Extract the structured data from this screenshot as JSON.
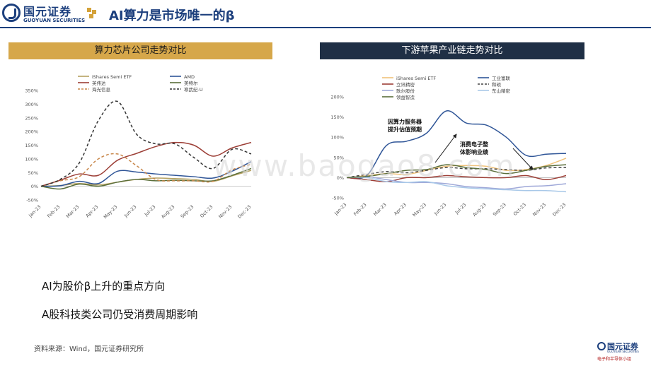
{
  "header": {
    "logo_cn": "国元证券",
    "logo_en": "GUOYUAN SECURITIES",
    "title": "AI算力是市场唯一的β",
    "brand_color": "#1c3f7d",
    "accent_color": "#d4a23a"
  },
  "left_panel": {
    "title": "算力芯片公司走势对比"
  },
  "right_panel": {
    "title": "下游苹果产业链走势对比"
  },
  "watermark": "www.baogao8.com",
  "bullets": [
    "AI为股价β上升的重点方向",
    "A股科技类公司仍受消费周期影响"
  ],
  "source": "资料来源：Wind，国元证券研究所",
  "footer_logo": {
    "cn": "国元证券",
    "en": "GUOYUAN SECURITIES",
    "team": "电子和半导体小组"
  },
  "chart_data": [
    {
      "type": "line",
      "title": "算力芯片公司走势对比",
      "x": [
        "Jan-23",
        "Feb-23",
        "Mar-23",
        "Apr-23",
        "May-23",
        "Jun-23",
        "Jul-23",
        "Aug-23",
        "Sep-23",
        "Oct-23",
        "Nov-23",
        "Dec-23"
      ],
      "yticks": [
        "350%",
        "300%",
        "250%",
        "200%",
        "150%",
        "100%",
        "50%",
        "0%",
        "-50%"
      ],
      "ylim": [
        -50,
        350
      ],
      "unit": "%",
      "legend_position": "top",
      "grid": false,
      "series": [
        {
          "name": "iShares Semi ETF",
          "color": "#b5a160",
          "dash": false,
          "values": [
            0,
            3,
            10,
            5,
            15,
            25,
            30,
            28,
            25,
            18,
            38,
            58
          ]
        },
        {
          "name": "AMD",
          "color": "#2f5597",
          "dash": false,
          "values": [
            0,
            2,
            18,
            10,
            55,
            52,
            45,
            40,
            35,
            30,
            55,
            90
          ]
        },
        {
          "name": "英伟达",
          "color": "#9c3e36",
          "dash": false,
          "values": [
            0,
            22,
            45,
            40,
            95,
            120,
            145,
            160,
            150,
            110,
            140,
            160
          ]
        },
        {
          "name": "美特尔",
          "color": "#5a6e3a",
          "dash": false,
          "values": [
            0,
            -10,
            8,
            0,
            15,
            25,
            20,
            22,
            20,
            20,
            40,
            65
          ]
        },
        {
          "name": "海光信息",
          "color": "#c8874a",
          "dash": true,
          "values": [
            0,
            20,
            35,
            100,
            118,
            75,
            25,
            20,
            20,
            18,
            60,
            80
          ]
        },
        {
          "name": "寒武纪-U",
          "color": "#333333",
          "dash": true,
          "values": [
            0,
            25,
            85,
            240,
            310,
            190,
            155,
            155,
            105,
            65,
            135,
            118
          ]
        }
      ]
    },
    {
      "type": "line",
      "title": "下游苹果产业链走势对比",
      "x": [
        "Jan-23",
        "Feb-23",
        "Mar-23",
        "Apr-23",
        "May-23",
        "Jun-23",
        "Jul-23",
        "Aug-23",
        "Sep-23",
        "Oct-23",
        "Nov-23",
        "Dec-23"
      ],
      "yticks": [
        "200%",
        "150%",
        "100%",
        "50%",
        "0%",
        "-50%"
      ],
      "ylim": [
        -50,
        200
      ],
      "unit": "%",
      "legend_position": "top",
      "grid": false,
      "annotations": [
        "因算力服务器\n提升估值预期",
        "消费电子整\n体影响业绩"
      ],
      "series": [
        {
          "name": "iShares Semi ETF",
          "color": "#f0c27a",
          "dash": false,
          "values": [
            0,
            5,
            10,
            8,
            18,
            28,
            30,
            28,
            18,
            20,
            30,
            48
          ]
        },
        {
          "name": "工业富联",
          "color": "#2f5597",
          "dash": false,
          "values": [
            0,
            5,
            80,
            90,
            110,
            165,
            135,
            130,
            100,
            55,
            58,
            60
          ]
        },
        {
          "name": "立讯精密",
          "color": "#9c3e36",
          "dash": false,
          "values": [
            0,
            -5,
            -10,
            0,
            0,
            5,
            2,
            0,
            0,
            5,
            -5,
            5
          ]
        },
        {
          "name": "和硕",
          "color": "#444444",
          "dash": true,
          "values": [
            0,
            8,
            15,
            12,
            18,
            25,
            22,
            22,
            20,
            18,
            24,
            25
          ]
        },
        {
          "name": "歌尔股份",
          "color": "#9fa8d8",
          "dash": false,
          "values": [
            0,
            2,
            -5,
            -12,
            -12,
            -15,
            -22,
            -25,
            -28,
            -22,
            -20,
            -15
          ]
        },
        {
          "name": "东山精密",
          "color": "#a8c8e8",
          "dash": false,
          "values": [
            0,
            0,
            -10,
            -12,
            -10,
            -20,
            -25,
            -28,
            -30,
            -32,
            -32,
            -35
          ]
        },
        {
          "name": "领益智造",
          "color": "#5a6e3a",
          "dash": false,
          "values": [
            0,
            3,
            10,
            18,
            20,
            32,
            25,
            20,
            10,
            18,
            28,
            32
          ]
        }
      ]
    }
  ]
}
